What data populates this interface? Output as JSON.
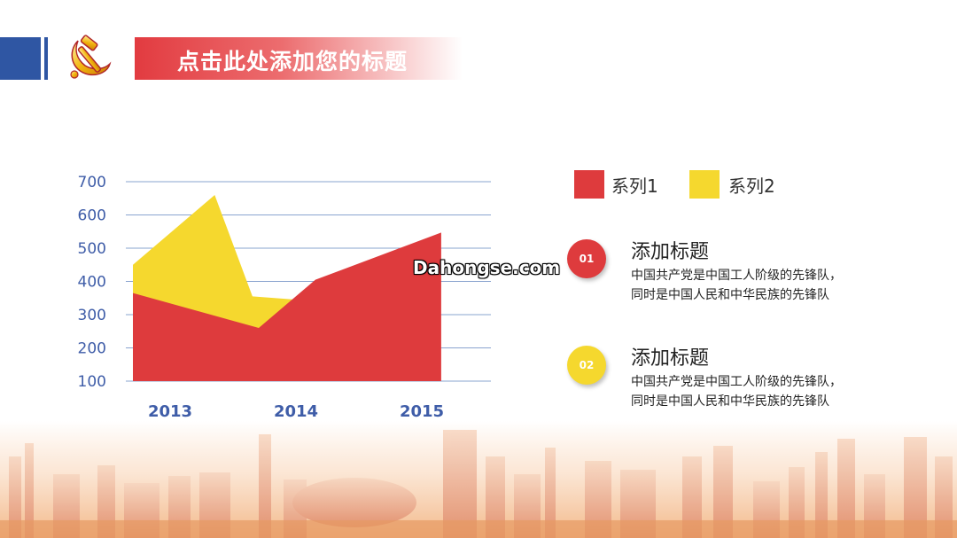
{
  "header": {
    "title": "点击此处添加您的标题",
    "emblem_icon": "hammer-sickle-icon",
    "brand_color": "#e23b40",
    "accent_color": "#2f56a3"
  },
  "chart_data": {
    "type": "area",
    "categories": [
      "2013",
      "2014",
      "2015"
    ],
    "y_ticks": [
      "700",
      "600",
      "500",
      "400",
      "300",
      "200",
      "100"
    ],
    "ylim": [
      100,
      700
    ],
    "series": [
      {
        "name": "系列1",
        "color": "#de3b3d",
        "points": [
          [
            0,
            365
          ],
          [
            1.0,
            260
          ],
          [
            1.45,
            405
          ],
          [
            2.45,
            547
          ]
        ]
      },
      {
        "name": "系列2",
        "color": "#f5d82e",
        "points": [
          [
            0,
            450
          ],
          [
            0.65,
            660
          ],
          [
            0.95,
            355
          ],
          [
            1.3,
            345
          ]
        ]
      }
    ],
    "grid": true,
    "legend": "right"
  },
  "legend": {
    "items": [
      {
        "label": "系列1",
        "color": "#de3b3d"
      },
      {
        "label": "系列2",
        "color": "#f5d82e"
      }
    ]
  },
  "items": [
    {
      "badge": "01",
      "badge_color": "#de3b3d",
      "title": "添加标题",
      "line1": "中国共产党是中国工人阶级的先锋队，",
      "line2": "同时是中国人民和中华民族的先锋队"
    },
    {
      "badge": "02",
      "badge_color": "#f5d82e",
      "title": "添加标题",
      "line1": "中国共产党是中国工人阶级的先锋队，",
      "line2": "同时是中国人民和中华民族的先锋队"
    }
  ],
  "watermark": "Dahongse.com"
}
